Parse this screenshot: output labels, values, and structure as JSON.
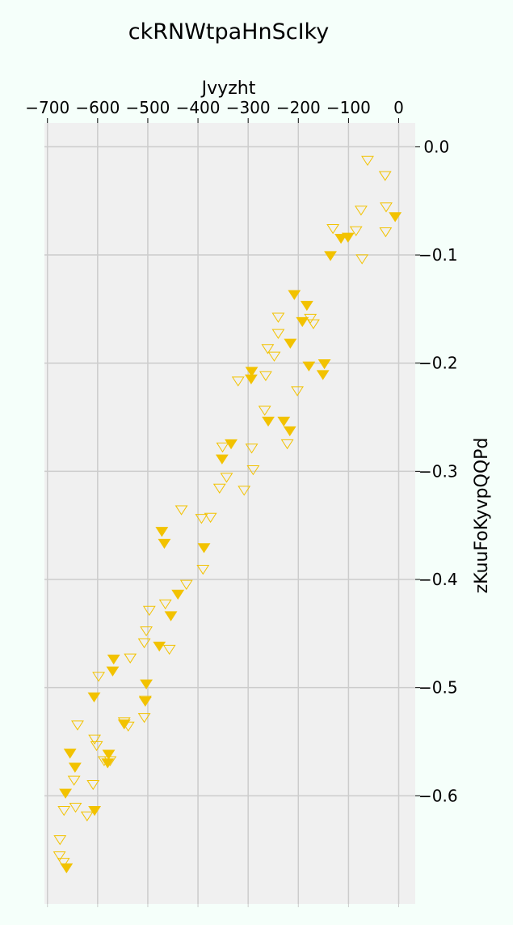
{
  "colors": {
    "background": "#f5fffa",
    "plot_area": "#f0f0f0",
    "grid": "#cccccc",
    "marker": "#f2c200"
  },
  "chart_data": {
    "type": "scatter",
    "title": "ckRNWtpaHnScIky",
    "xlabel": "Jvyzht",
    "ylabel": "zKuuFoKyvpQQPd",
    "x_axis_position": "top",
    "y_axis_position": "right",
    "xlim": [
      -706,
      33
    ],
    "ylim": [
      -0.7,
      0.022
    ],
    "x_ticks": [
      -700,
      -600,
      -500,
      -400,
      -300,
      -200,
      -100,
      0
    ],
    "x_tick_labels": [
      "−700",
      "−600",
      "−500",
      "−400",
      "−300",
      "−200",
      "−100",
      "0"
    ],
    "y_ticks": [
      0.0,
      -0.1,
      -0.2,
      -0.3,
      -0.4,
      -0.5,
      -0.6
    ],
    "y_tick_labels": [
      "0.0",
      "−0.1",
      "−0.2",
      "−0.3",
      "−0.4",
      "−0.5",
      "−0.6"
    ],
    "grid": true,
    "marker": "triangle-down",
    "series": [
      {
        "style": "filled",
        "points": [
          [
            -7,
            -0.064
          ],
          [
            -101,
            -0.083
          ],
          [
            -115,
            -0.084
          ],
          [
            -136,
            -0.1
          ],
          [
            -208,
            -0.136
          ],
          [
            -183,
            -0.146
          ],
          [
            -192,
            -0.161
          ],
          [
            -216,
            -0.181
          ],
          [
            -148,
            -0.2
          ],
          [
            -179,
            -0.202
          ],
          [
            -151,
            -0.21
          ],
          [
            -293,
            -0.207
          ],
          [
            -294,
            -0.214
          ],
          [
            -260,
            -0.253
          ],
          [
            -229,
            -0.253
          ],
          [
            -217,
            -0.262
          ],
          [
            -334,
            -0.274
          ],
          [
            -352,
            -0.288
          ],
          [
            -472,
            -0.355
          ],
          [
            -467,
            -0.366
          ],
          [
            -388,
            -0.37
          ],
          [
            -440,
            -0.413
          ],
          [
            -454,
            -0.433
          ],
          [
            -477,
            -0.461
          ],
          [
            -503,
            -0.496
          ],
          [
            -505,
            -0.512
          ],
          [
            -568,
            -0.473
          ],
          [
            -570,
            -0.484
          ],
          [
            -607,
            -0.508
          ],
          [
            -547,
            -0.533
          ],
          [
            -578,
            -0.561
          ],
          [
            -580,
            -0.569
          ],
          [
            -655,
            -0.56
          ],
          [
            -645,
            -0.573
          ],
          [
            -664,
            -0.597
          ],
          [
            -606,
            -0.613
          ],
          [
            -662,
            -0.666
          ]
        ]
      },
      {
        "style": "hollow",
        "points": [
          [
            -62,
            -0.012
          ],
          [
            -27,
            -0.026
          ],
          [
            -75,
            -0.058
          ],
          [
            -25,
            -0.055
          ],
          [
            -26,
            -0.078
          ],
          [
            -85,
            -0.077
          ],
          [
            -131,
            -0.075
          ],
          [
            -73,
            -0.103
          ],
          [
            -240,
            -0.157
          ],
          [
            -176,
            -0.158
          ],
          [
            -170,
            -0.163
          ],
          [
            -240,
            -0.172
          ],
          [
            -261,
            -0.186
          ],
          [
            -248,
            -0.193
          ],
          [
            -320,
            -0.216
          ],
          [
            -265,
            -0.211
          ],
          [
            -202,
            -0.225
          ],
          [
            -267,
            -0.243
          ],
          [
            -222,
            -0.274
          ],
          [
            -293,
            -0.278
          ],
          [
            -351,
            -0.277
          ],
          [
            -290,
            -0.298
          ],
          [
            -343,
            -0.305
          ],
          [
            -357,
            -0.315
          ],
          [
            -308,
            -0.317
          ],
          [
            -433,
            -0.335
          ],
          [
            -375,
            -0.342
          ],
          [
            -393,
            -0.343
          ],
          [
            -390,
            -0.39
          ],
          [
            -423,
            -0.404
          ],
          [
            -465,
            -0.422
          ],
          [
            -497,
            -0.428
          ],
          [
            -503,
            -0.447
          ],
          [
            -507,
            -0.458
          ],
          [
            -457,
            -0.464
          ],
          [
            -535,
            -0.472
          ],
          [
            -598,
            -0.489
          ],
          [
            -505,
            -0.511
          ],
          [
            -547,
            -0.531
          ],
          [
            -539,
            -0.535
          ],
          [
            -507,
            -0.527
          ],
          [
            -640,
            -0.534
          ],
          [
            -606,
            -0.547
          ],
          [
            -602,
            -0.553
          ],
          [
            -575,
            -0.567
          ],
          [
            -587,
            -0.567
          ],
          [
            -609,
            -0.589
          ],
          [
            -647,
            -0.585
          ],
          [
            -667,
            -0.613
          ],
          [
            -644,
            -0.61
          ],
          [
            -621,
            -0.618
          ],
          [
            -675,
            -0.64
          ],
          [
            -676,
            -0.655
          ],
          [
            -668,
            -0.661
          ]
        ]
      }
    ]
  }
}
